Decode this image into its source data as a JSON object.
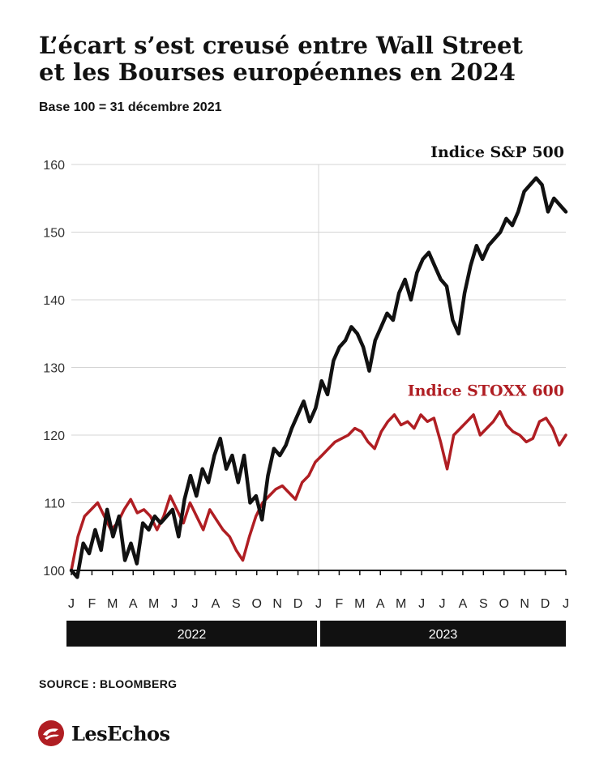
{
  "header": {
    "title_line1": "L’écart s’est creusé entre Wall Street",
    "title_line2": "et les Bourses européennes en 2024",
    "subtitle": "Base 100 = 31 décembre 2021"
  },
  "footer": {
    "source": "SOURCE : BLOOMBERG",
    "brand": "LesEchos"
  },
  "colors": {
    "sp500": "#111111",
    "stoxx600": "#b01e23",
    "grid": "#d4d4d4",
    "year_band": "#111111",
    "text": "#111111"
  },
  "icons": {
    "logo": "les-echos-logo-icon"
  },
  "chart_data": {
    "type": "line",
    "ylim": [
      100,
      160
    ],
    "yticks": [
      100,
      110,
      120,
      130,
      140,
      150,
      160
    ],
    "month_labels": [
      "J",
      "F",
      "M",
      "A",
      "M",
      "J",
      "J",
      "A",
      "S",
      "O",
      "N",
      "D",
      "J",
      "F",
      "M",
      "A",
      "M",
      "J",
      "J",
      "A",
      "S",
      "O",
      "N",
      "D",
      "J"
    ],
    "years": [
      "2022",
      "2023"
    ],
    "grid": "horizontal",
    "series": [
      {
        "name": "Indice S&P 500",
        "values": [
          100,
          99,
          104,
          102.5,
          106,
          103,
          109,
          105,
          108,
          101.5,
          104,
          101,
          107,
          106,
          108,
          107,
          108,
          109,
          105,
          110.5,
          114,
          111,
          115,
          113,
          117,
          119.5,
          115,
          117,
          113,
          117,
          110,
          111,
          107.5,
          114,
          118,
          117,
          118.5,
          121,
          123,
          125,
          122,
          124,
          128,
          126,
          131,
          133,
          134,
          136,
          135,
          133,
          129.5,
          134,
          136,
          138,
          137,
          141,
          143,
          140,
          144,
          146,
          147,
          145,
          143,
          142,
          137,
          135,
          141,
          145,
          148,
          146,
          148,
          149,
          150,
          152,
          151,
          153,
          156,
          157,
          158,
          157,
          153,
          155,
          154,
          153
        ]
      },
      {
        "name": "Indice STOXX 600",
        "values": [
          100,
          105,
          108,
          109,
          110,
          108,
          106,
          107,
          109,
          110.5,
          108.5,
          109,
          108,
          106,
          108,
          111,
          109,
          107,
          110,
          108,
          106,
          109,
          107.5,
          106,
          105,
          103,
          101.5,
          105,
          108,
          110,
          111,
          112,
          112.5,
          111.5,
          110.5,
          113,
          114,
          116,
          117,
          118,
          119,
          119.5,
          120,
          121,
          120.5,
          119,
          118,
          120.5,
          122,
          123,
          121.5,
          122,
          121,
          123,
          122,
          122.5,
          119,
          115,
          120,
          121,
          122,
          123,
          120,
          121,
          122,
          123.5,
          121.5,
          120.5,
          120,
          119,
          119.5,
          122,
          122.5,
          121,
          118.5,
          120
        ]
      }
    ]
  }
}
